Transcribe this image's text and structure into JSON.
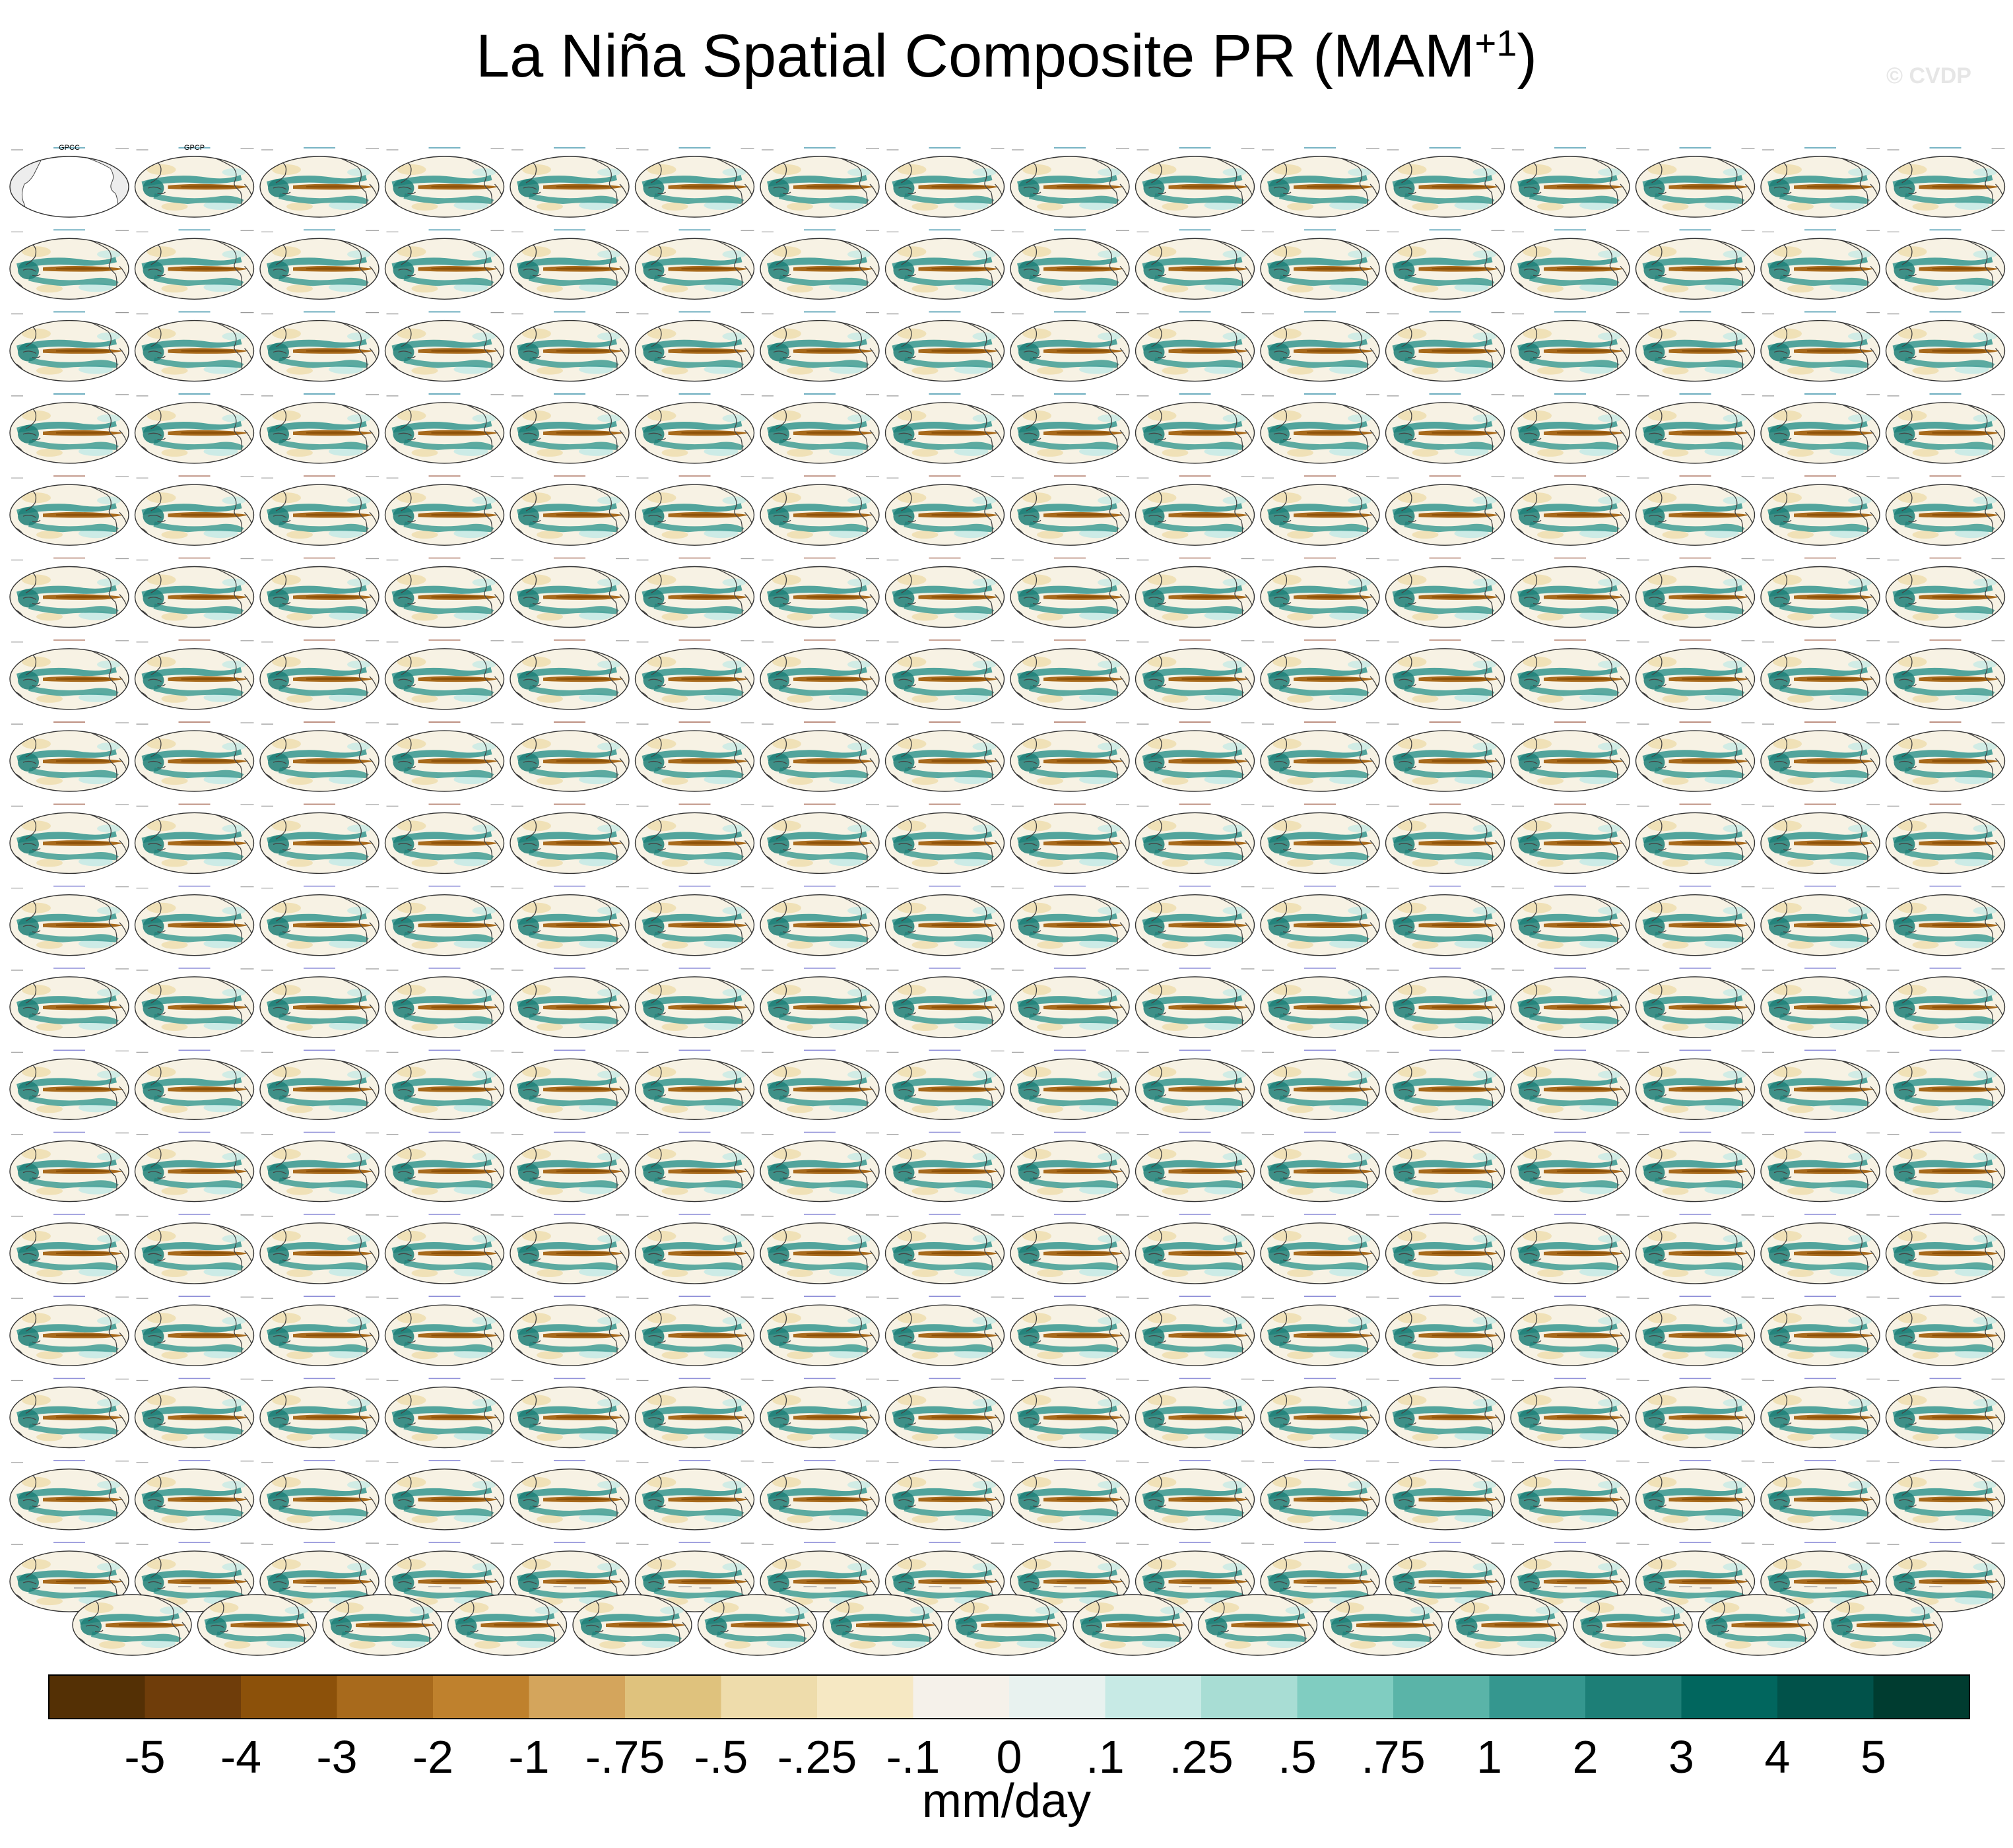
{
  "title_main": "La Niña Spatial Composite PR (MAM",
  "title_sup": "+1",
  "title_close": ")",
  "watermark": "© CVDP",
  "chart_data": {
    "type": "heatmap",
    "title": "La Niña Spatial Composite PR (MAM+1)",
    "description_grid": {
      "rows_full": 18,
      "cols_full": 16,
      "last_row_cols": 15
    },
    "panels_first": [
      {
        "label": "GPCC",
        "kind": "observations-land"
      },
      {
        "label": "GPCP",
        "kind": "observations"
      }
    ],
    "colorbar": {
      "units": "mm/day",
      "tick_labels": [
        "-5",
        "-4",
        "-3",
        "-2",
        "-1",
        "-.75",
        "-.5",
        "-.25",
        "-.1",
        "0",
        ".1",
        ".25",
        ".5",
        ".75",
        "1",
        "2",
        "3",
        "4",
        "5"
      ],
      "colors": [
        "#543005",
        "#6f3d0a",
        "#8c510a",
        "#a86a1c",
        "#bf812d",
        "#d4a55c",
        "#dfc27d",
        "#eedcab",
        "#f6e8c3",
        "#f5f1ea",
        "#e8f2ef",
        "#c7eae5",
        "#a8ddd4",
        "#80cdc1",
        "#5ab4a8",
        "#35978f",
        "#1d7f77",
        "#01665e",
        "#01524a",
        "#003c30"
      ]
    },
    "colors": {
      "land": "#ededed",
      "coast": "#444444",
      "ocean_bg": "#f7f2e4",
      "brown": "#a86a1c",
      "teal": "#35978f"
    }
  }
}
